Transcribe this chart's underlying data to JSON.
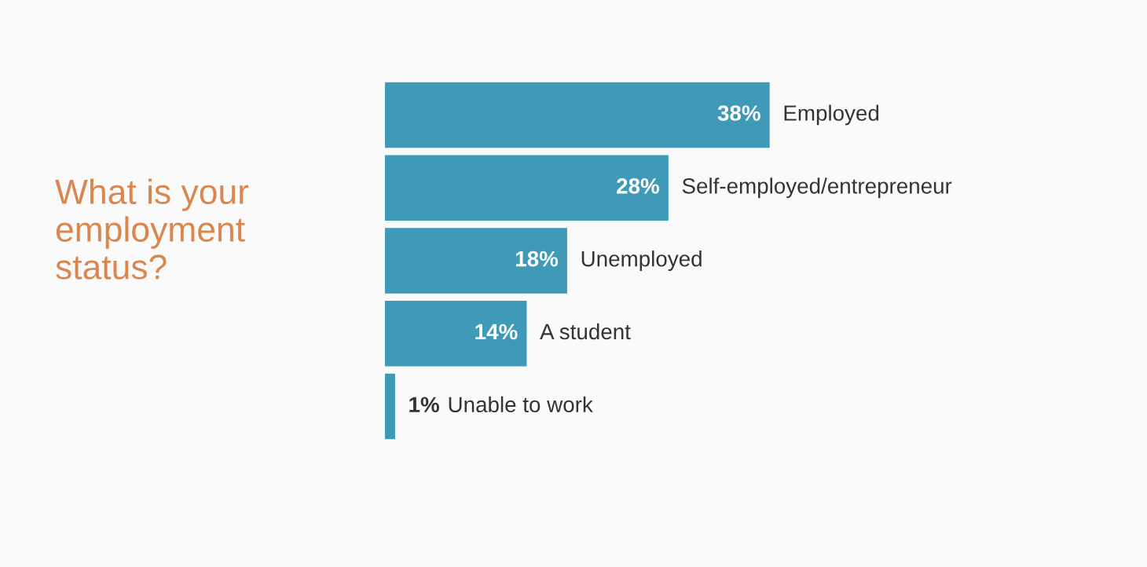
{
  "chart_data": {
    "type": "bar",
    "orientation": "horizontal",
    "title": "What is your\nemployment\nstatus?",
    "categories": [
      "Employed",
      "Self-employed/entrepreneur",
      "Unemployed",
      "A student",
      "Unable to work"
    ],
    "values": [
      38,
      28,
      18,
      14,
      1
    ],
    "value_labels": [
      "38%",
      "28%",
      "18%",
      "14%",
      "1%"
    ],
    "color": "#3f9ab8"
  }
}
